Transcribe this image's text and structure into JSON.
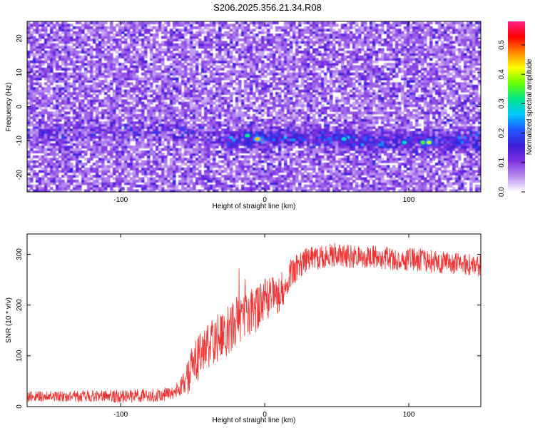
{
  "title": "S206.2025.356.21.34.R08",
  "colors": {
    "snr_line": "#ee3333",
    "axis": "#000000",
    "colormap": [
      "#ffffff",
      "#b98ff0",
      "#7b2fe0",
      "#3b1fd6",
      "#2255ff",
      "#00c8ff",
      "#00e68a",
      "#66ff00",
      "#ffff00",
      "#ff8800",
      "#ff0000",
      "#ff2288"
    ]
  },
  "chart_data": [
    {
      "type": "heatmap",
      "title": "S206.2025.356.21.34.R08",
      "xlabel": "Height of straight line (km)",
      "ylabel": "Frequency (Hz)",
      "xlim": [
        -165,
        150
      ],
      "ylim": [
        -25,
        25
      ],
      "xticks": [
        -100,
        0,
        100
      ],
      "xtick_labels": [
        "-100",
        "0",
        "100"
      ],
      "yticks": [
        -20,
        -10,
        0,
        10,
        20
      ],
      "ytick_labels": [
        "-20",
        "-10",
        "0",
        "10",
        "20"
      ],
      "colorbar": {
        "label": "Normalized spectral amplitude",
        "range": [
          0,
          0.58
        ],
        "ticks": [
          0.0,
          0.1,
          0.2,
          0.3,
          0.4,
          0.5
        ],
        "tick_labels": [
          "0.0",
          "0.1",
          "0.2",
          "0.3",
          "0.4",
          "0.5"
        ]
      },
      "ridge": {
        "description_note": "",
        "x": [
          -150,
          -120,
          -90,
          -70,
          -50,
          -30,
          -10,
          10,
          30,
          50,
          70,
          90,
          110,
          130,
          150
        ],
        "freq": [
          -8,
          -7,
          -7,
          -7,
          -8,
          -10,
          -9,
          -9,
          -9,
          -9,
          -10,
          -10,
          -10,
          -10,
          -9
        ]
      },
      "peaks": [
        {
          "x": -12,
          "freq": -8.5,
          "amp": 0.32
        },
        {
          "x": -5,
          "freq": -9.5,
          "amp": 0.45
        },
        {
          "x": 45,
          "freq": -9.5,
          "amp": 0.22
        },
        {
          "x": 55,
          "freq": -9.5,
          "amp": 0.28
        },
        {
          "x": 97,
          "freq": -10.5,
          "amp": 0.28
        },
        {
          "x": 110,
          "freq": -10.5,
          "amp": 0.36
        },
        {
          "x": 114,
          "freq": -10.5,
          "amp": 0.4
        },
        {
          "x": -57,
          "freq": -6.5,
          "amp": 0.2
        },
        {
          "x": -50,
          "freq": -7.5,
          "amp": 0.18
        }
      ]
    },
    {
      "type": "line",
      "xlabel": "Height of straight line (km)",
      "ylabel": "SNR (10 * v/v)",
      "xlim": [
        -165,
        150
      ],
      "ylim": [
        0,
        340
      ],
      "xticks": [
        -100,
        0,
        100
      ],
      "xtick_labels": [
        "-100",
        "0",
        "100"
      ],
      "yticks": [
        0,
        100,
        200,
        300
      ],
      "ytick_labels": [
        "0",
        "100",
        "200",
        "300"
      ],
      "series": [
        {
          "x": [
            -165,
            -140,
            -120,
            -100,
            -80,
            -65,
            -55,
            -50,
            -45,
            -40,
            -35,
            -30,
            -25,
            -20,
            -15,
            -10,
            -5,
            0,
            5,
            10,
            15,
            20,
            25,
            30,
            40,
            50,
            60,
            70,
            80,
            90,
            100,
            110,
            120,
            130,
            140,
            150
          ],
          "y": [
            20,
            20,
            20,
            20,
            22,
            25,
            45,
            80,
            100,
            120,
            130,
            140,
            150,
            170,
            175,
            185,
            190,
            210,
            215,
            215,
            250,
            270,
            280,
            290,
            295,
            298,
            297,
            296,
            293,
            292,
            290,
            288,
            285,
            283,
            280,
            278
          ],
          "noise": [
            [
              -165,
              10
            ],
            [
              -60,
              15
            ],
            [
              -50,
              45
            ],
            [
              -20,
              50
            ],
            [
              10,
              40
            ],
            [
              25,
              25
            ],
            [
              150,
              22
            ]
          ]
        }
      ]
    }
  ]
}
